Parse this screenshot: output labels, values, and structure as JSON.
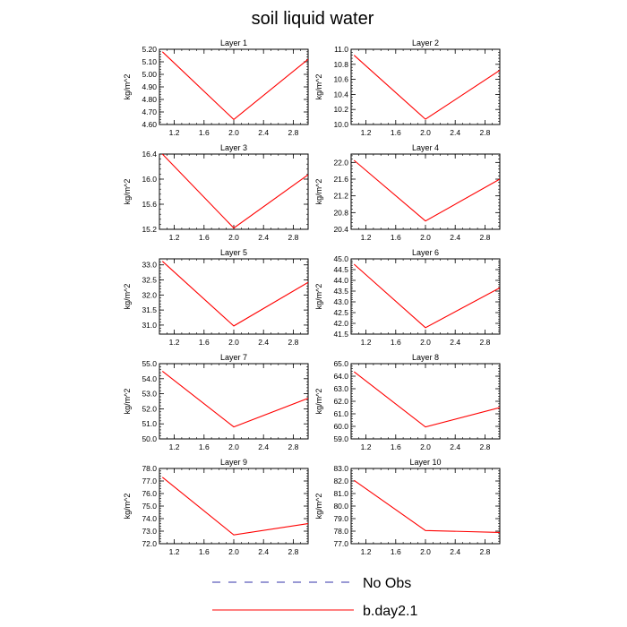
{
  "figure_title": "soil liquid water",
  "chart_data": [
    {
      "type": "line",
      "title": "Layer 1",
      "ylabel": "kg/m^2",
      "xlim": [
        1.0,
        3.0
      ],
      "xticks": [
        1.2,
        1.6,
        2.0,
        2.4,
        2.8
      ],
      "xtick_labels": [
        "1.2",
        "1.6",
        "2.0",
        "2.4",
        "2.8"
      ],
      "ylim": [
        4.6,
        5.2
      ],
      "yticks": [
        4.6,
        4.7,
        4.8,
        4.9,
        5.0,
        5.1,
        5.2
      ],
      "ytick_labels": [
        "4.60",
        "4.70",
        "4.80",
        "4.90",
        "5.00",
        "5.10",
        "5.20"
      ],
      "series": [
        {
          "name": "b.day2.1",
          "color": "#ff0000",
          "x": [
            1.04,
            2.0,
            3.0
          ],
          "y": [
            5.18,
            4.64,
            5.12
          ]
        }
      ]
    },
    {
      "type": "line",
      "title": "Layer 2",
      "ylabel": "kg/m^2",
      "xlim": [
        1.0,
        3.0
      ],
      "xticks": [
        1.2,
        1.6,
        2.0,
        2.4,
        2.8
      ],
      "xtick_labels": [
        "1.2",
        "1.6",
        "2.0",
        "2.4",
        "2.8"
      ],
      "ylim": [
        10.0,
        11.0
      ],
      "yticks": [
        10.0,
        10.2,
        10.4,
        10.6,
        10.8,
        11.0
      ],
      "ytick_labels": [
        "10.0",
        "10.2",
        "10.4",
        "10.6",
        "10.8",
        "11.0"
      ],
      "series": [
        {
          "name": "b.day2.1",
          "color": "#ff0000",
          "x": [
            1.04,
            2.0,
            3.0
          ],
          "y": [
            10.92,
            10.07,
            10.72
          ]
        }
      ]
    },
    {
      "type": "line",
      "title": "Layer 3",
      "ylabel": "kg/m^2",
      "xlim": [
        1.0,
        3.0
      ],
      "xticks": [
        1.2,
        1.6,
        2.0,
        2.4,
        2.8
      ],
      "xtick_labels": [
        "1.2",
        "1.6",
        "2.0",
        "2.4",
        "2.8"
      ],
      "ylim": [
        15.2,
        16.4
      ],
      "yticks": [
        15.2,
        15.6,
        16.0,
        16.4
      ],
      "ytick_labels": [
        "15.2",
        "15.6",
        "16.0",
        "16.4"
      ],
      "series": [
        {
          "name": "b.day2.1",
          "color": "#ff0000",
          "x": [
            1.04,
            2.0,
            3.0
          ],
          "y": [
            16.4,
            15.22,
            16.07
          ]
        }
      ]
    },
    {
      "type": "line",
      "title": "Layer 4",
      "ylabel": "kg/m^2",
      "xlim": [
        1.0,
        3.0
      ],
      "xticks": [
        1.2,
        1.6,
        2.0,
        2.4,
        2.8
      ],
      "xtick_labels": [
        "1.2",
        "1.6",
        "2.0",
        "2.4",
        "2.8"
      ],
      "ylim": [
        20.4,
        22.2
      ],
      "yticks": [
        20.4,
        20.8,
        21.2,
        21.6,
        22.0
      ],
      "ytick_labels": [
        "20.4",
        "20.8",
        "21.2",
        "21.6",
        "22.0"
      ],
      "series": [
        {
          "name": "b.day2.1",
          "color": "#ff0000",
          "x": [
            1.04,
            2.0,
            3.0
          ],
          "y": [
            22.05,
            20.6,
            21.6
          ]
        }
      ]
    },
    {
      "type": "line",
      "title": "Layer 5",
      "ylabel": "kg/m^2",
      "xlim": [
        1.0,
        3.0
      ],
      "xticks": [
        1.2,
        1.6,
        2.0,
        2.4,
        2.8
      ],
      "xtick_labels": [
        "1.2",
        "1.6",
        "2.0",
        "2.4",
        "2.8"
      ],
      "ylim": [
        30.7,
        33.2
      ],
      "yticks": [
        31.0,
        31.5,
        32.0,
        32.5,
        33.0
      ],
      "ytick_labels": [
        "31.0",
        "31.5",
        "32.0",
        "32.5",
        "33.0"
      ],
      "series": [
        {
          "name": "b.day2.1",
          "color": "#ff0000",
          "x": [
            1.04,
            2.0,
            3.0
          ],
          "y": [
            33.12,
            30.97,
            32.42
          ]
        }
      ]
    },
    {
      "type": "line",
      "title": "Layer 6",
      "ylabel": "kg/m^2",
      "xlim": [
        1.0,
        3.0
      ],
      "xticks": [
        1.2,
        1.6,
        2.0,
        2.4,
        2.8
      ],
      "xtick_labels": [
        "1.2",
        "1.6",
        "2.0",
        "2.4",
        "2.8"
      ],
      "ylim": [
        41.5,
        45.0
      ],
      "yticks": [
        41.5,
        42.0,
        42.5,
        43.0,
        43.5,
        44.0,
        44.5,
        45.0
      ],
      "ytick_labels": [
        "41.5",
        "42.0",
        "42.5",
        "43.0",
        "43.5",
        "44.0",
        "44.5",
        "45.0"
      ],
      "series": [
        {
          "name": "b.day2.1",
          "color": "#ff0000",
          "x": [
            1.04,
            2.0,
            3.0
          ],
          "y": [
            44.75,
            41.8,
            43.65
          ]
        }
      ]
    },
    {
      "type": "line",
      "title": "Layer 7",
      "ylabel": "kg/m^2",
      "xlim": [
        1.0,
        3.0
      ],
      "xticks": [
        1.2,
        1.6,
        2.0,
        2.4,
        2.8
      ],
      "xtick_labels": [
        "1.2",
        "1.6",
        "2.0",
        "2.4",
        "2.8"
      ],
      "ylim": [
        50.0,
        55.0
      ],
      "yticks": [
        50.0,
        51.0,
        52.0,
        53.0,
        54.0,
        55.0
      ],
      "ytick_labels": [
        "50.0",
        "51.0",
        "52.0",
        "53.0",
        "54.0",
        "55.0"
      ],
      "series": [
        {
          "name": "b.day2.1",
          "color": "#ff0000",
          "x": [
            1.04,
            2.0,
            3.0
          ],
          "y": [
            54.5,
            50.8,
            52.7
          ]
        }
      ]
    },
    {
      "type": "line",
      "title": "Layer 8",
      "ylabel": "kg/m^2",
      "xlim": [
        1.0,
        3.0
      ],
      "xticks": [
        1.2,
        1.6,
        2.0,
        2.4,
        2.8
      ],
      "xtick_labels": [
        "1.2",
        "1.6",
        "2.0",
        "2.4",
        "2.8"
      ],
      "ylim": [
        59.0,
        65.0
      ],
      "yticks": [
        59.0,
        60.0,
        61.0,
        62.0,
        63.0,
        64.0,
        65.0
      ],
      "ytick_labels": [
        "59.0",
        "60.0",
        "61.0",
        "62.0",
        "63.0",
        "64.0",
        "65.0"
      ],
      "series": [
        {
          "name": "b.day2.1",
          "color": "#ff0000",
          "x": [
            1.04,
            2.0,
            3.0
          ],
          "y": [
            64.35,
            59.95,
            61.5
          ]
        }
      ]
    },
    {
      "type": "line",
      "title": "Layer 9",
      "ylabel": "kg/m^2",
      "xlim": [
        1.0,
        3.0
      ],
      "xticks": [
        1.2,
        1.6,
        2.0,
        2.4,
        2.8
      ],
      "xtick_labels": [
        "1.2",
        "1.6",
        "2.0",
        "2.4",
        "2.8"
      ],
      "ylim": [
        72.0,
        78.0
      ],
      "yticks": [
        72.0,
        73.0,
        74.0,
        75.0,
        76.0,
        77.0,
        78.0
      ],
      "ytick_labels": [
        "72.0",
        "73.0",
        "74.0",
        "75.0",
        "76.0",
        "77.0",
        "78.0"
      ],
      "series": [
        {
          "name": "b.day2.1",
          "color": "#ff0000",
          "x": [
            1.04,
            2.0,
            3.0
          ],
          "y": [
            77.3,
            72.7,
            73.6
          ]
        }
      ]
    },
    {
      "type": "line",
      "title": "Layer 10",
      "ylabel": "kg/m^2",
      "xlim": [
        1.0,
        3.0
      ],
      "xticks": [
        1.2,
        1.6,
        2.0,
        2.4,
        2.8
      ],
      "xtick_labels": [
        "1.2",
        "1.6",
        "2.0",
        "2.4",
        "2.8"
      ],
      "ylim": [
        77.0,
        83.0
      ],
      "yticks": [
        77.0,
        78.0,
        79.0,
        80.0,
        81.0,
        82.0,
        83.0
      ],
      "ytick_labels": [
        "77.0",
        "78.0",
        "79.0",
        "80.0",
        "81.0",
        "82.0",
        "83.0"
      ],
      "series": [
        {
          "name": "b.day2.1",
          "color": "#ff0000",
          "x": [
            1.04,
            2.0,
            3.0
          ],
          "y": [
            82.05,
            78.05,
            77.9
          ]
        }
      ]
    }
  ],
  "legend": {
    "items": [
      {
        "label": "No Obs",
        "color": "#3333aa",
        "style": "dashed"
      },
      {
        "label": "b.day2.1",
        "color": "#ff0000",
        "style": "solid"
      }
    ]
  }
}
